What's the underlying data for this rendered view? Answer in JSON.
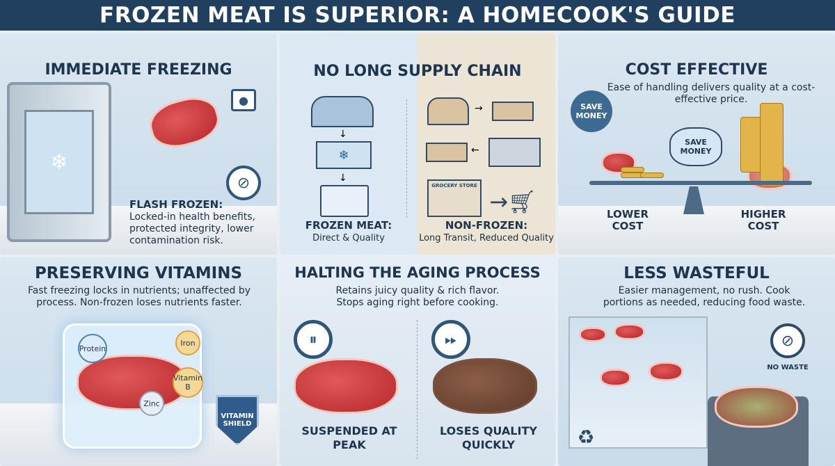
{
  "title": "FROZEN MEAT IS SUPERIOR: A HOMECOOK'S GUIDE",
  "panels": {
    "immediate_freezing": {
      "title": "IMMEDIATE FREEZING",
      "label": "FLASH FROZEN:",
      "text": "Locked-in health benefits, protected integrity, lower contamination risk.",
      "icons": [
        "freezer-icon",
        "lock-icon",
        "no-bacteria-icon",
        "snowflake-icon"
      ]
    },
    "supply_chain": {
      "title": "NO LONG SUPPLY CHAIN",
      "store_sign": "GROCERY STORE",
      "frozen_label": "FROZEN MEAT:",
      "frozen_text": "Direct & Quality",
      "nonfrozen_label": "NON-FROZEN:",
      "nonfrozen_text": "Long Transit, Reduced Quality"
    },
    "cost": {
      "title": "COST EFFECTIVE",
      "text": "Ease of handling delivers quality at a cost-effective price.",
      "tag": "SAVE MONEY",
      "piggy": "SAVE MONEY",
      "lower": "LOWER COST",
      "higher": "HIGHER COST"
    },
    "vitamins": {
      "title": "PRESERVING VITAMINS",
      "text": "Fast freezing locks in nutrients; unaffected by process. Non-frozen loses nutrients faster.",
      "nutrients": [
        "Protein",
        "Iron",
        "Vitamin B",
        "Zinc"
      ],
      "shield": "VITAMIN SHIELD"
    },
    "aging": {
      "title": "HALTING THE AGING PROCESS",
      "text": "Retains juicy quality & rich flavor. Stops aging right before cooking.",
      "left": "SUSPENDED AT PEAK",
      "right": "LOSES QUALITY QUICKLY"
    },
    "waste": {
      "title": "LESS WASTEFUL",
      "text": "Easier management, no rush. Cook portions as needed, reducing food waste.",
      "badge": "NO WASTE"
    }
  },
  "colors": {
    "header": "#21405f",
    "title": "#1e3550",
    "accent": "#2f5578"
  }
}
